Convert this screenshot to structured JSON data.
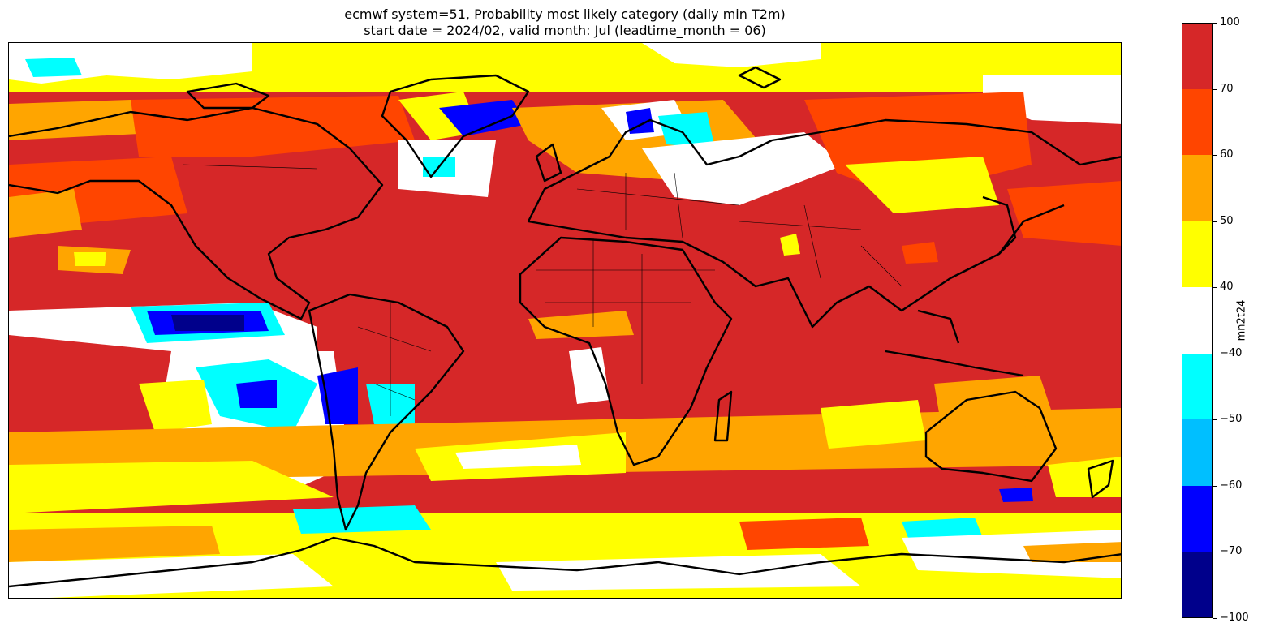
{
  "title": {
    "line1": "ecmwf system=51, Probability most likely category (daily min T2m)",
    "line2": "start date = 2024/02, valid month: Jul (leadtime_month = 06)"
  },
  "map": {
    "projection": "PlateCarree",
    "extent_lon": [
      -180,
      180
    ],
    "extent_lat": [
      -90,
      90
    ],
    "dominant_category_color": "#d62728"
  },
  "colorbar": {
    "label": "mn2t24",
    "ticks": [
      "100",
      "70",
      "60",
      "50",
      "40",
      "−40",
      "−50",
      "−60",
      "−70",
      "−100"
    ],
    "bins": [
      {
        "from": 70,
        "to": 100,
        "color": "#d62728"
      },
      {
        "from": 60,
        "to": 70,
        "color": "#ff4500"
      },
      {
        "from": 50,
        "to": 60,
        "color": "#ffa500"
      },
      {
        "from": 40,
        "to": 50,
        "color": "#ffff00"
      },
      {
        "from": -40,
        "to": 40,
        "color": "#ffffff"
      },
      {
        "from": -50,
        "to": -40,
        "color": "#00ffff"
      },
      {
        "from": -60,
        "to": -50,
        "color": "#00bfff"
      },
      {
        "from": -70,
        "to": -60,
        "color": "#0000ff"
      },
      {
        "from": -100,
        "to": -70,
        "color": "#00008b"
      }
    ]
  }
}
